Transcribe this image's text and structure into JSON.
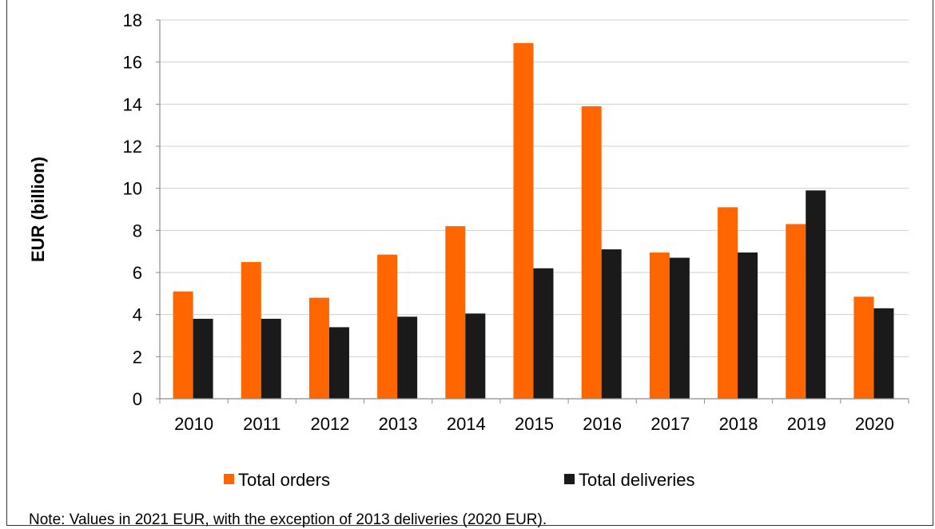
{
  "chart_data": {
    "type": "bar",
    "title": "",
    "xlabel": "",
    "ylabel": "EUR (billion)",
    "ylim": [
      0,
      18
    ],
    "yticks": [
      0,
      2,
      4,
      6,
      8,
      10,
      12,
      14,
      16,
      18
    ],
    "grid": true,
    "legend_position": "bottom",
    "categories": [
      "2010",
      "2011",
      "2012",
      "2013",
      "2014",
      "2015",
      "2016",
      "2017",
      "2018",
      "2019",
      "2020"
    ],
    "series": [
      {
        "name": "Total orders",
        "color": "#ff6600",
        "values": [
          5.1,
          6.5,
          4.8,
          6.85,
          8.2,
          16.9,
          13.9,
          6.95,
          9.1,
          8.3,
          4.85
        ]
      },
      {
        "name": "Total deliveries",
        "color": "#1a1a1a",
        "values": [
          3.8,
          3.8,
          3.4,
          3.9,
          4.05,
          6.2,
          7.1,
          6.7,
          6.95,
          9.9,
          4.3
        ]
      }
    ]
  },
  "note": "Note: Values in 2021 EUR, with the exception of 2013 deliveries (2020 EUR)."
}
